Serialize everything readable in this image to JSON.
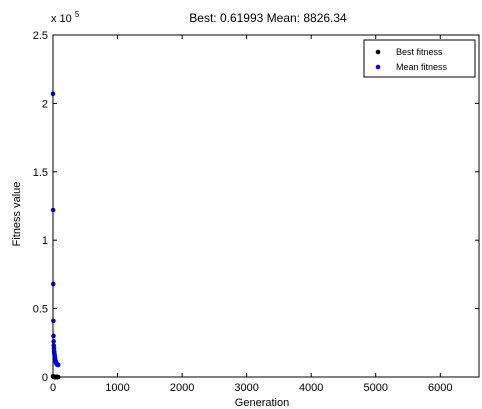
{
  "chart_data": {
    "type": "scatter",
    "title": "Best: 0.61993 Mean: 8826.34",
    "xlabel": "Generation",
    "ylabel": "Fitness value",
    "xlim": [
      0,
      6600
    ],
    "ylim": [
      0,
      250000
    ],
    "x_ticks": [
      0,
      1000,
      2000,
      3000,
      4000,
      5000,
      6000
    ],
    "x_tick_labels": [
      "0",
      "1000",
      "2000",
      "3000",
      "4000",
      "5000",
      "6000"
    ],
    "y_ticks": [
      0,
      50000,
      100000,
      150000,
      200000,
      250000
    ],
    "y_tick_labels": [
      "0",
      "0.5",
      "1",
      "1.5",
      "2",
      "2.5"
    ],
    "y_multiplier": "x 10",
    "y_multiplier_exp": "5",
    "grid": false,
    "legend_position": "top-right",
    "series": [
      {
        "name": "Best fitness",
        "color": "#000000",
        "x": [
          0,
          5,
          10,
          15,
          20,
          25,
          30,
          35,
          40,
          45,
          50,
          55,
          60,
          65,
          70,
          75,
          80
        ],
        "y": [
          600,
          300,
          150,
          80,
          40,
          20,
          10,
          5,
          3,
          2,
          1.5,
          1,
          0.9,
          0.8,
          0.7,
          0.65,
          0.62
        ]
      },
      {
        "name": "Mean fitness",
        "color": "#0000ff",
        "x": [
          0,
          2,
          4,
          6,
          8,
          10,
          12,
          15,
          18,
          20,
          22,
          25,
          28,
          30,
          33,
          35,
          38,
          40,
          43,
          45,
          48,
          50,
          53,
          55,
          58,
          60,
          63,
          65,
          68,
          70,
          73,
          75,
          78,
          80
        ],
        "y": [
          207000,
          122000,
          68000,
          41000,
          30000,
          26000,
          23000,
          21000,
          19000,
          18000,
          17000,
          16000,
          15000,
          14000,
          13000,
          12500,
          12000,
          11500,
          11000,
          10800,
          10500,
          10200,
          10000,
          9800,
          9600,
          9400,
          9300,
          9200,
          9100,
          9000,
          8950,
          8900,
          8850,
          8826
        ]
      }
    ]
  }
}
